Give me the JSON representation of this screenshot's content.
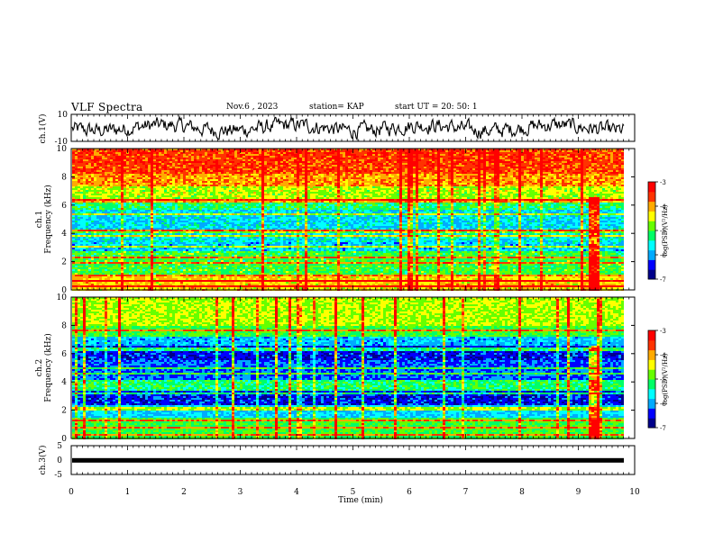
{
  "header": {
    "title": "VLF Spectra",
    "date": "Nov.6 , 2023",
    "station": "station= KAP",
    "start_time": "start UT = 20: 50: 1"
  },
  "chart_data": [
    {
      "type": "line",
      "panel": "ch1-waveform",
      "ylabel": "ch.1(V)",
      "ylim": [
        -10,
        10
      ],
      "yticks": [
        "10",
        "-10"
      ],
      "xlim": [
        0,
        10
      ],
      "description_values": "noisy waveform oscillating roughly between -7 and 7 V"
    },
    {
      "type": "heatmap",
      "panel": "ch1-spectrogram",
      "ylabel": "ch.1\nFrequency (kHz)",
      "ylabel_line1": "ch.1",
      "ylabel_line2": "Frequency (kHz)",
      "ylim": [
        0,
        10
      ],
      "yticks": [
        "0",
        "2",
        "4",
        "6",
        "8",
        "10"
      ],
      "xlim": [
        0,
        10
      ],
      "bands": [
        {
          "f0": 8.0,
          "f1": 10.0,
          "level": "high"
        },
        {
          "f0": 6.5,
          "f1": 8.0,
          "level": "mid-high"
        },
        {
          "f0": 4.0,
          "f1": 6.0,
          "level": "low"
        },
        {
          "f0": 2.5,
          "f1": 4.0,
          "level": "low-mid"
        },
        {
          "f0": 0.0,
          "f1": 2.5,
          "level": "mid"
        }
      ],
      "colorbar": {
        "label": "log(PSD)(V²/Hz)",
        "min": -7,
        "max": -3,
        "ticks": [
          "-3",
          "-4",
          "-5",
          "-6",
          "-7"
        ]
      }
    },
    {
      "type": "heatmap",
      "panel": "ch2-spectrogram",
      "ylabel_line1": "ch.2",
      "ylabel_line2": "Frequency (kHz)",
      "ylim": [
        0,
        10
      ],
      "yticks": [
        "0",
        "2",
        "4",
        "6",
        "8",
        "10"
      ],
      "xlim": [
        0,
        10
      ],
      "colorbar": {
        "label": "log(PSD)(V²/Hz)",
        "min": -7,
        "max": -3,
        "ticks": [
          "-3",
          "-4",
          "-5",
          "-6",
          "-7"
        ]
      }
    },
    {
      "type": "line",
      "panel": "ch3-waveform",
      "ylabel": "ch.3(V)",
      "ylim": [
        -5,
        5
      ],
      "yticks": [
        "5",
        "0",
        "-5"
      ],
      "xlim": [
        0,
        10
      ],
      "value": -0.1
    }
  ],
  "xaxis": {
    "label": "Time (min)",
    "ticks": [
      "0",
      "1",
      "2",
      "3",
      "4",
      "5",
      "6",
      "7",
      "8",
      "9",
      "10"
    ]
  },
  "colors": {
    "colormap": [
      "#00008b",
      "#0000ff",
      "#00aaff",
      "#00ffff",
      "#00ff66",
      "#66ff00",
      "#ffff00",
      "#ffaa00",
      "#ff3300",
      "#ff0000",
      "#ffffff"
    ]
  }
}
